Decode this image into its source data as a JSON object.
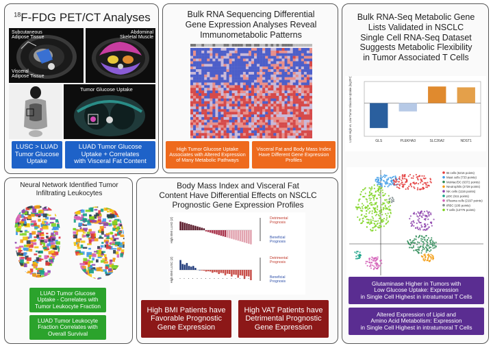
{
  "panels": {
    "pet": {
      "title": "F-FDG PET/CT Analyses",
      "title_superscript": "18",
      "labels": {
        "subcutaneous": "Subcutaneous\nAdipose Tissue",
        "visceral": "Visceral\nAdipose Tissue",
        "abdominal": "Abdominal\nSkeletal Muscle",
        "tumor_uptake": "Tumor Glucose Uptake"
      },
      "box_lusc": "LUSC > LUAD\nTumor Glucose\nUptake",
      "box_luad": "LUAD Tumor Glucose\nUptake + Correlates\nwith Visceral Fat Content"
    },
    "rna": {
      "title": "Bulk RNA Sequencing Differential\nGene Expression Analyses Reveal\nImmunometabolic Patterns",
      "box_left": "High Tumor Glucose Uptake\nAssociates with Altered Expression\nof Many Metabolic Pathways",
      "box_right": "Visceral Fat and Body Mass Index\nHave Different Gene Expression\nProfiles"
    },
    "metabolic": {
      "title": "Bulk RNA-Seq Metabolic Gene\nLists Validated in NSCLC\nSingle Cell RNA-Seq Dataset\nSuggests Metabolic Flexibility\nin Tumor Associated T Cells",
      "box_glutaminase": "Glutaminase Higher in Tumors with\nLow Glucose Uptake: Expression\nin Single Cell Highest in intratumoral T Cells",
      "box_lipid": "Altered Expression of Lipid and\nAmino Acid Metabolism: Expression\nin Single Cell Highest in intratumoral T Cells"
    },
    "neural": {
      "title": "Neural Network Identified Tumor\nInfiltrating Leukocytes",
      "box_fraction": "LUAD Tumor Glucose\nUptake - Correlates with\nTumor Leukocyte Fraction",
      "box_survival": "LUAD Tumor Leukocyte\nFraction Correlates with\nOverall Survival"
    },
    "bmi": {
      "title": "Body Mass Index and Visceral Fat\nContent Have Differential Effects on NSCLC\nPrognostic Gene Expression Profiles",
      "box_bmi": "High BMI Patients have\nFavorable Prognostic\nGene Expression",
      "box_vat": "High VAT Patients have\nDetrimental Prognostic\nGene Expression",
      "labels": {
        "detrimental": "Detrimental\nPrognosis",
        "beneficial": "Beneficial\nPrognosis",
        "ylabel_luad": "High BMI LUAD (Z)",
        "ylabel_lusc": "High BMI LUSC (Z)"
      }
    }
  },
  "chart_data": [
    {
      "type": "bar",
      "ylabel": "LUAD High vs. Low Tumor Glucose Uptake (log2FC)",
      "categories": [
        "GLS",
        "PLEKHA3",
        "SLC26A2",
        "NDST1"
      ],
      "values": [
        -1.5,
        -0.5,
        1.0,
        0.95
      ],
      "ylim": [
        -2.0,
        1.3
      ],
      "colors": [
        "#2a5f9e",
        "#b6c9e6",
        "#e08a2e",
        "#e4a04a"
      ]
    },
    {
      "type": "scatter",
      "legend": [
        {
          "name": "tB cells (6216 points)",
          "color": "#e33b3b"
        },
        {
          "name": "Mast cells (733 points)",
          "color": "#3d9be8"
        },
        {
          "name": "MoMac/DC (6372 points)",
          "color": "#2e8b57"
        },
        {
          "name": "Neutrophils (2728 points)",
          "color": "#f39c12"
        },
        {
          "name": "NK cells (1116 points)",
          "color": "#8e44ad"
        },
        {
          "name": "pDC (511 points)",
          "color": "#16a085"
        },
        {
          "name": "tPlasma cells (2197 points)",
          "color": "#d35fb7"
        },
        {
          "name": "tRBC (106 points)",
          "color": "#7f8c8d"
        },
        {
          "name": "T cells (12776 points)",
          "color": "#7ed321"
        }
      ],
      "legend_position": "top-right"
    }
  ]
}
